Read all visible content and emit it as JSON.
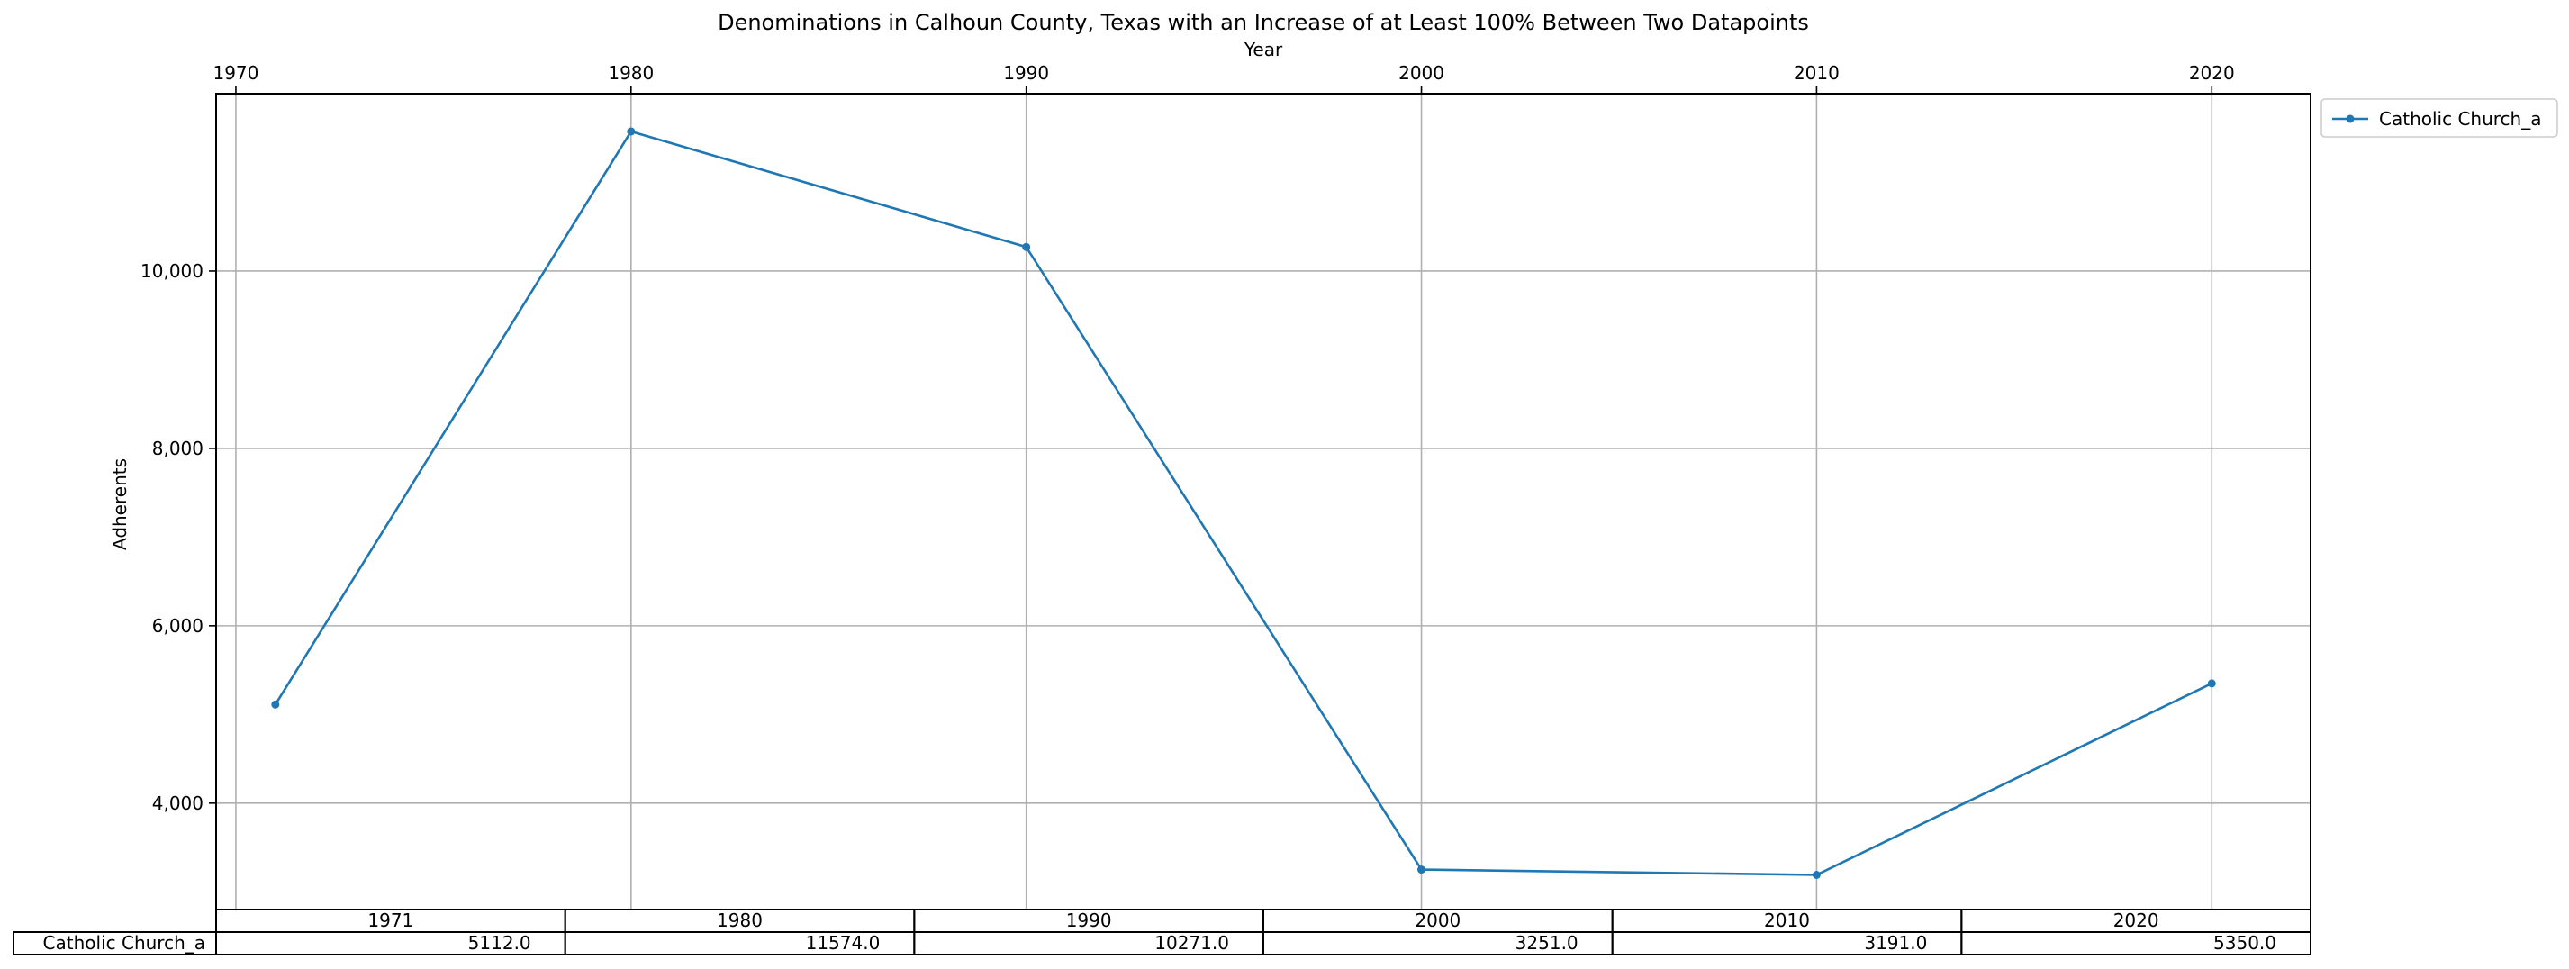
{
  "chart_data": {
    "type": "line",
    "title": "Denominations in Calhoun County, Texas with an Increase of at Least 100% Between Two Datapoints",
    "xlabel": "Year",
    "ylabel": "Adherents",
    "x": [
      1971,
      1980,
      1990,
      2000,
      2010,
      2020
    ],
    "xlim": [
      1969.5,
      2022.5
    ],
    "ylim": [
      2800,
      12000
    ],
    "xticks": [
      1970,
      1980,
      1990,
      2000,
      2010,
      2020
    ],
    "xtick_labels": [
      "1970",
      "1980",
      "1990",
      "2000",
      "2010",
      "2020"
    ],
    "yticks": [
      4000,
      6000,
      8000,
      10000
    ],
    "ytick_labels": [
      "4,000",
      "6,000",
      "8,000",
      "10,000"
    ],
    "x_axis_position": "top",
    "grid": true,
    "legend_position": "outside-top-right",
    "series": [
      {
        "name": "Catholic Church_a",
        "values": [
          5112,
          11574,
          10271,
          3251,
          3191,
          5350
        ],
        "color": "#1f77b4",
        "marker": "dot"
      }
    ],
    "table": {
      "columns": [
        "1971",
        "1980",
        "1990",
        "2000",
        "2010",
        "2020"
      ],
      "rows": [
        {
          "label": "Catholic Church_a",
          "cells": [
            "5112.0",
            "11574.0",
            "10271.0",
            "3251.0",
            "3191.0",
            "5350.0"
          ]
        }
      ]
    }
  }
}
